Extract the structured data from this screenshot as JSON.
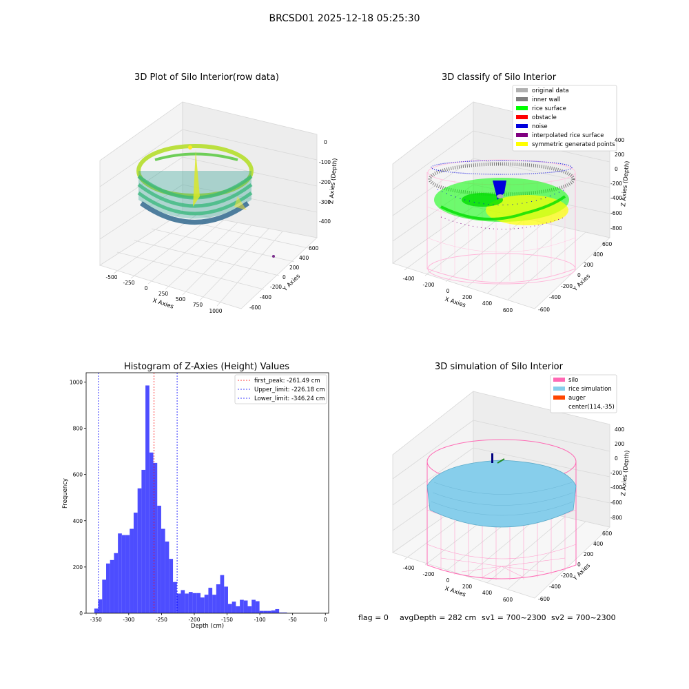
{
  "title": "BRCSD01 2025-12-18 05:25:30",
  "panels": {
    "raw": {
      "title": "3D Plot of Silo Interior(row data)",
      "xlabel": "X Axies",
      "ylabel": "Y Axies",
      "zlabel": "Z Axies (Depth)",
      "x_ticks": [
        "-500",
        "-250",
        "0",
        "250",
        "500",
        "750",
        "1000"
      ],
      "y_ticks": [
        "600",
        "400",
        "200",
        "0",
        "-200",
        "-400",
        "-600"
      ],
      "z_ticks": [
        "0",
        "-100",
        "-200",
        "-300",
        "-400"
      ]
    },
    "classify": {
      "title": "3D classify of Silo Interior",
      "xlabel": "X Axies",
      "ylabel": "Y Axies",
      "zlabel": "Z Axies (Depth)",
      "x_ticks": [
        "-400",
        "-200",
        "0",
        "200",
        "400",
        "600"
      ],
      "y_ticks": [
        "600",
        "400",
        "200",
        "0",
        "-200",
        "-400",
        "-600"
      ],
      "z_ticks": [
        "400",
        "200",
        "0",
        "-200",
        "-400",
        "-600",
        "-800"
      ],
      "legend": [
        {
          "label": "original data",
          "color": "#b0b0b0"
        },
        {
          "label": "inner wall",
          "color": "#808080"
        },
        {
          "label": "rice surface",
          "color": "#00ff00"
        },
        {
          "label": "obstacle",
          "color": "#ff0000"
        },
        {
          "label": "noise",
          "color": "#0000dd"
        },
        {
          "label": "interpolated rice surface",
          "color": "#800080"
        },
        {
          "label": "symmetric generated points",
          "color": "#ffff00"
        }
      ]
    },
    "simulation": {
      "title": "3D simulation of Silo Interior",
      "xlabel": "X Axies",
      "ylabel": "Y Axies",
      "zlabel": "Z Axies (Depth)",
      "x_ticks": [
        "-400",
        "-200",
        "0",
        "200",
        "400",
        "600"
      ],
      "y_ticks": [
        "600",
        "400",
        "200",
        "0",
        "-200",
        "-400",
        "-600"
      ],
      "z_ticks": [
        "400",
        "200",
        "0",
        "-200",
        "-400",
        "-600",
        "-800"
      ],
      "legend": [
        {
          "label": "silo",
          "color": "#ff69b4"
        },
        {
          "label": "rice simulation",
          "color": "#87ceeb"
        },
        {
          "label": "auger",
          "color": "#ff4500"
        },
        {
          "label": "center(114,-35)",
          "color": ""
        }
      ]
    }
  },
  "status": {
    "flag": "flag = 0",
    "avg_depth": "avgDepth = 282 cm",
    "sv1": "sv1 = 700~2300",
    "sv2": "sv2 = 700~2300"
  },
  "colors": {
    "histogram_bar": "#4d4dff",
    "first_peak_line": "#ff0000",
    "limit_lines": "#0000ff"
  },
  "chart_data": {
    "type": "bar",
    "title": "Histogram of Z-Axies (Height) Values",
    "xlabel": "Depth (cm)",
    "ylabel": "Frequency",
    "xlim": [
      -365,
      5
    ],
    "ylim": [
      0,
      1040
    ],
    "x_ticks": [
      -350,
      -300,
      -250,
      -200,
      -150,
      -100,
      -50,
      0
    ],
    "y_ticks": [
      0,
      200,
      400,
      600,
      800,
      1000
    ],
    "bin_start": -352.5,
    "bin_width": 6.0,
    "values": [
      20,
      60,
      145,
      215,
      230,
      260,
      345,
      338,
      338,
      365,
      435,
      540,
      620,
      985,
      695,
      650,
      465,
      365,
      310,
      235,
      135,
      85,
      100,
      85,
      92,
      87,
      87,
      68,
      80,
      110,
      80,
      125,
      165,
      115,
      40,
      50,
      30,
      58,
      55,
      30,
      58,
      52,
      10,
      10,
      10,
      12,
      18,
      3,
      3
    ],
    "vlines": [
      {
        "label": "first_peak: -261.49 cm",
        "x": -261.49,
        "color": "#ff0000"
      },
      {
        "label": "Upper_limit: -226.18 cm",
        "x": -226.18,
        "color": "#0000ff"
      },
      {
        "label": "Lower_limit: -346.24 cm",
        "x": -346.24,
        "color": "#0000ff"
      }
    ],
    "legend_position": "upper right"
  }
}
